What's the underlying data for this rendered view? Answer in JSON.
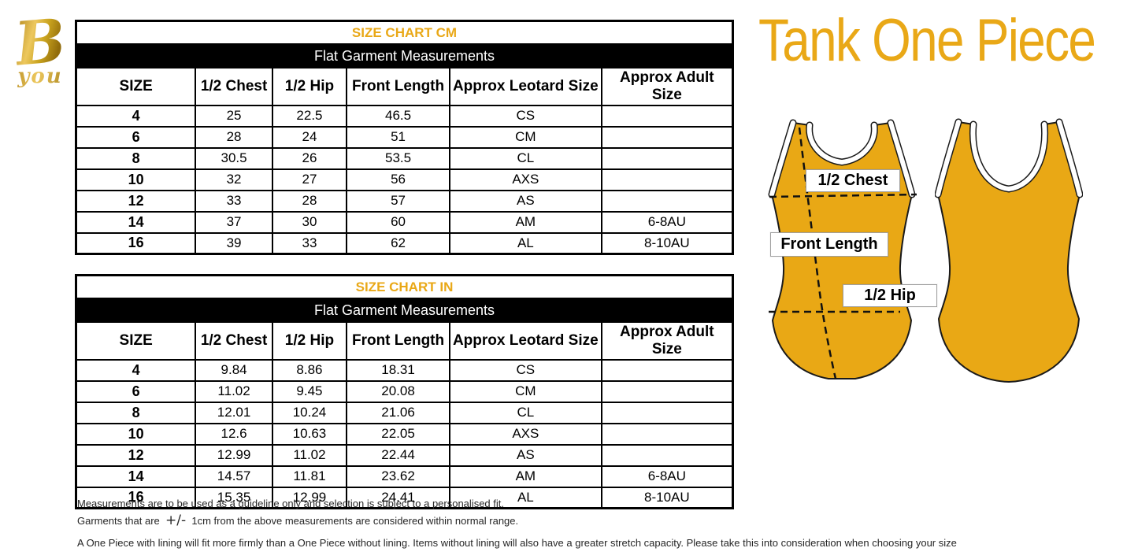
{
  "page": {
    "background": "#ffffff"
  },
  "colors": {
    "accent_gold": "#E9A817",
    "logo_gold": "#C9991B",
    "garment_fill": "#E9A815",
    "table_border": "#000000",
    "subtitle_bg": "#000000",
    "subtitle_text": "#ffffff"
  },
  "logo": {
    "monogram": "B",
    "text": "you"
  },
  "header": {
    "title": "Tank One Piece"
  },
  "tables": [
    {
      "title": "SIZE CHART CM",
      "subtitle": "Flat Garment Measurements",
      "columns": [
        "SIZE",
        "1/2 Chest",
        "1/2 Hip",
        "Front Length",
        "Approx Leotard Size",
        "Approx Adult Size"
      ],
      "rows": [
        [
          "4",
          "25",
          "22.5",
          "46.5",
          "CS",
          ""
        ],
        [
          "6",
          "28",
          "24",
          "51",
          "CM",
          ""
        ],
        [
          "8",
          "30.5",
          "26",
          "53.5",
          "CL",
          ""
        ],
        [
          "10",
          "32",
          "27",
          "56",
          "AXS",
          ""
        ],
        [
          "12",
          "33",
          "28",
          "57",
          "AS",
          ""
        ],
        [
          "14",
          "37",
          "30",
          "60",
          "AM",
          "6-8AU"
        ],
        [
          "16",
          "39",
          "33",
          "62",
          "AL",
          "8-10AU"
        ]
      ]
    },
    {
      "title": "SIZE CHART IN",
      "subtitle": "Flat Garment Measurements",
      "columns": [
        "SIZE",
        "1/2 Chest",
        "1/2 Hip",
        "Front Length",
        "Approx Leotard Size",
        "Approx Adult Size"
      ],
      "rows": [
        [
          "4",
          "9.84",
          "8.86",
          "18.31",
          "CS",
          ""
        ],
        [
          "6",
          "11.02",
          "9.45",
          "20.08",
          "CM",
          ""
        ],
        [
          "8",
          "12.01",
          "10.24",
          "21.06",
          "CL",
          ""
        ],
        [
          "10",
          "12.6",
          "10.63",
          "22.05",
          "AXS",
          ""
        ],
        [
          "12",
          "12.99",
          "11.02",
          "22.44",
          "AS",
          ""
        ],
        [
          "14",
          "14.57",
          "11.81",
          "23.62",
          "AM",
          "6-8AU"
        ],
        [
          "16",
          "15.35",
          "12.99",
          "24.41",
          "AL",
          "8-10AU"
        ]
      ]
    }
  ],
  "diagram": {
    "labels": {
      "chest": "1/2 Chest",
      "front_length": "Front Length",
      "hip": "1/2 Hip"
    }
  },
  "footnotes": {
    "line1": "Measurements are to be used as a guideline only and selection is subject to a personalised fit.",
    "line2_before": "Garments that are",
    "line2_symbol": "+/-",
    "line2_after": "1cm from the above measurements are considered within normal range.",
    "line3": "A One Piece with lining will fit more firmly than a One Piece without lining.  Items without lining will also have a greater stretch capacity. Please take this into consideration when choosing your size"
  }
}
